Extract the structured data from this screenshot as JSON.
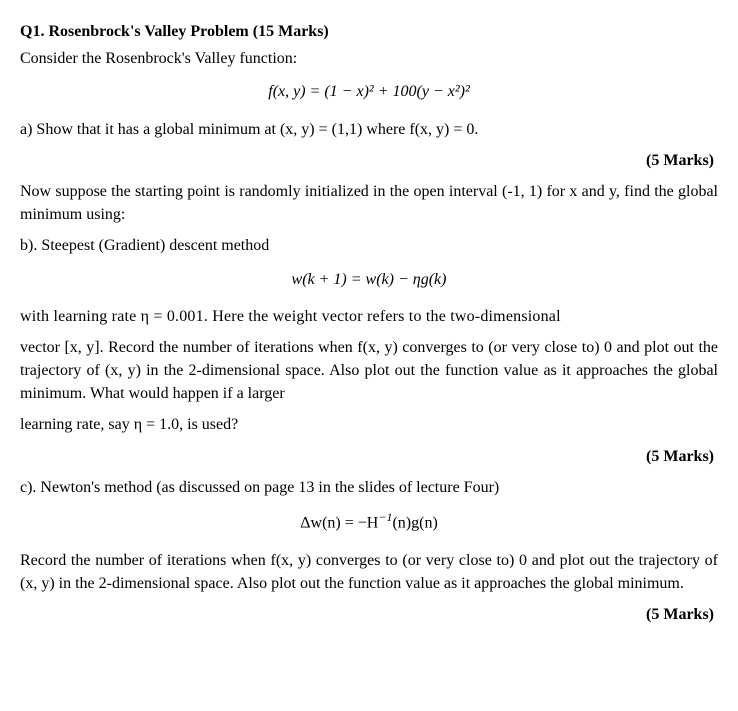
{
  "q1": {
    "title_prefix": "Q1. Rosenbrock's Valley Problem (15 Marks)",
    "intro": "Consider the Rosenbrock's Valley function:",
    "equation_main": "f(x, y) = (1 − x)² + 100(y − x²)²",
    "part_a": "a) Show that it has a global minimum at (x, y) = (1,1) where f(x, y) = 0.",
    "marks_a": "(5 Marks)",
    "suppose": "Now suppose the starting point is randomly initialized in the open interval (-1, 1) for x and y, find the global minimum using:",
    "part_b_label": "b). Steepest (Gradient) descent method",
    "equation_b": "w(k + 1) = w(k) − ηg(k)",
    "b_para1": "with learning rate η = 0.001. Here the weight vector refers to the two-dimensional",
    "b_para2": "vector [x, y]. Record the number of iterations when f(x, y) converges to (or very close to) 0 and plot out the trajectory of (x, y) in the 2-dimensional space. Also plot out the function value as it approaches the global minimum. What would happen if a larger",
    "b_para3": "learning rate, say η = 1.0, is used?",
    "marks_b": "(5 Marks)",
    "part_c_label": "c). Newton's method (as discussed on page 13 in the slides of lecture Four)",
    "equation_c_lhs": "Δw(n) = −H",
    "equation_c_sup": "−1",
    "equation_c_rhs": "(n)g(n)",
    "c_para": "Record the number of iterations when f(x, y) converges to (or very close to) 0 and plot out the trajectory of (x, y) in the 2-dimensional space. Also plot out the function value as it approaches the global minimum.",
    "marks_c": "(5 Marks)"
  }
}
